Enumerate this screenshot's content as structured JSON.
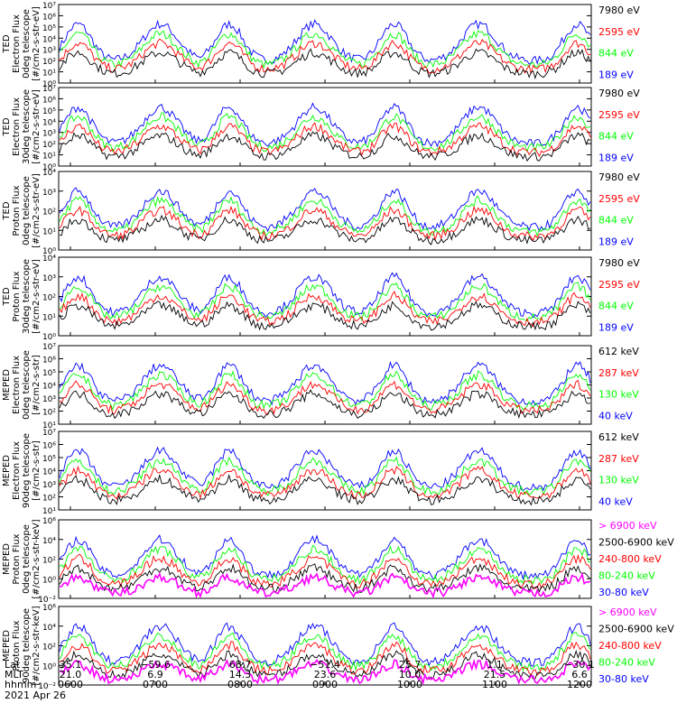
{
  "colors": {
    "blue": "#0000ff",
    "red": "#ff0000",
    "green": "#00ff00",
    "black": "#000000",
    "magenta": "#ff00ff"
  },
  "chart_data": [
    {
      "type": "line",
      "instrument": "TED",
      "ylabel": [
        "TED",
        "Electron Flux",
        "0deg telescope",
        "[#/cm2-s-str-eV]"
      ],
      "yscale": "log",
      "ylim_exp": [
        0,
        7
      ],
      "yticks": [
        "10⁰",
        "10¹",
        "10²",
        "10³",
        "10⁴",
        "10⁵",
        "10⁶",
        "10⁷"
      ],
      "legend": [
        {
          "label": "7980 eV",
          "color": "black"
        },
        {
          "label": "2595 eV",
          "color": "red"
        },
        {
          "label": "844 eV",
          "color": "green"
        },
        {
          "label": "189 eV",
          "color": "blue"
        }
      ]
    },
    {
      "type": "line",
      "instrument": "TED",
      "ylabel": [
        "TED",
        "Electron Flux",
        "30deg telescope",
        "[#/cm2-s-str-eV]"
      ],
      "yscale": "log",
      "ylim_exp": [
        0,
        7
      ],
      "yticks": [
        "10⁰",
        "10¹",
        "10²",
        "10³",
        "10⁴",
        "10⁵",
        "10⁶",
        "10⁷"
      ],
      "legend": [
        {
          "label": "7980 eV",
          "color": "black"
        },
        {
          "label": "2595 eV",
          "color": "red"
        },
        {
          "label": "844 eV",
          "color": "green"
        },
        {
          "label": "189 eV",
          "color": "blue"
        }
      ]
    },
    {
      "type": "line",
      "instrument": "TED",
      "ylabel": [
        "TED",
        "Proton Flux",
        "0deg telescope",
        "[#/cm2-s-str-eV]"
      ],
      "yscale": "log",
      "ylim_exp": [
        0,
        5
      ],
      "yticks": [
        "10⁰",
        "10¹",
        "10²",
        "10³",
        "10⁴"
      ],
      "legend": [
        {
          "label": "7980 eV",
          "color": "black"
        },
        {
          "label": "2595 eV",
          "color": "red"
        },
        {
          "label": "844 eV",
          "color": "green"
        },
        {
          "label": "189 eV",
          "color": "blue"
        }
      ]
    },
    {
      "type": "line",
      "instrument": "TED",
      "ylabel": [
        "TED",
        "Proton Flux",
        "30deg telescope",
        "[#/cm2-s-str-eV]"
      ],
      "yscale": "log",
      "ylim_exp": [
        0,
        5
      ],
      "yticks": [
        "10⁰",
        "10¹",
        "10²",
        "10³",
        "10⁴"
      ],
      "legend": [
        {
          "label": "7980 eV",
          "color": "black"
        },
        {
          "label": "2595 eV",
          "color": "red"
        },
        {
          "label": "844 eV",
          "color": "green"
        },
        {
          "label": "189 eV",
          "color": "blue"
        }
      ]
    },
    {
      "type": "line",
      "instrument": "MEPED",
      "ylabel": [
        "MEPED",
        "Electron Flux",
        "0deg telescope",
        "[#/cm2-s-str]"
      ],
      "yscale": "log",
      "ylim_exp": [
        1,
        7
      ],
      "yticks": [
        "10¹",
        "10²",
        "10³",
        "10⁴",
        "10⁵",
        "10⁶",
        "10⁷"
      ],
      "legend": [
        {
          "label": "612 keV",
          "color": "black"
        },
        {
          "label": "287 keV",
          "color": "red"
        },
        {
          "label": "130 keV",
          "color": "green"
        },
        {
          "label": "40 keV",
          "color": "blue"
        }
      ]
    },
    {
      "type": "line",
      "instrument": "MEPED",
      "ylabel": [
        "MEPED",
        "Electron Flux",
        "90deg telescope",
        "[#/cm2-s-str]"
      ],
      "yscale": "log",
      "ylim_exp": [
        1,
        7
      ],
      "yticks": [
        "10¹",
        "10²",
        "10³",
        "10⁴",
        "10⁵",
        "10⁶",
        "10⁷"
      ],
      "legend": [
        {
          "label": "612 keV",
          "color": "black"
        },
        {
          "label": "287 keV",
          "color": "red"
        },
        {
          "label": "130 keV",
          "color": "green"
        },
        {
          "label": "40 keV",
          "color": "blue"
        }
      ]
    },
    {
      "type": "line",
      "instrument": "MEPED",
      "ylabel": [
        "MEPED",
        "Proton Flux",
        "0deg telescope",
        "[#/cm2-s-str-keV]"
      ],
      "yscale": "log",
      "ylim_exp": [
        -2,
        6
      ],
      "yticks": [
        "10⁻²",
        "10⁰",
        "10²",
        "10⁴",
        "10⁶"
      ],
      "legend": [
        {
          "label": "> 6900 keV",
          "color": "magenta"
        },
        {
          "label": "2500-6900 keV",
          "color": "black"
        },
        {
          "label": "240-800 keV",
          "color": "red"
        },
        {
          "label": "80-240 keV",
          "color": "green"
        },
        {
          "label": "30-80 keV",
          "color": "blue"
        }
      ]
    },
    {
      "type": "line",
      "instrument": "MEPED",
      "ylabel": [
        "MEPED",
        "Proton Flux",
        "90deg telescope",
        "[#/cm2-s-str-keV]"
      ],
      "yscale": "log",
      "ylim_exp": [
        -2,
        6
      ],
      "yticks": [
        "10⁻²",
        "10⁰",
        "10²",
        "10⁴",
        "10⁶"
      ],
      "legend": [
        {
          "label": "> 6900 keV",
          "color": "magenta"
        },
        {
          "label": "2500-6900 keV",
          "color": "black"
        },
        {
          "label": "240-800 keV",
          "color": "red"
        },
        {
          "label": "80-240 keV",
          "color": "green"
        },
        {
          "label": "30-80 keV",
          "color": "blue"
        }
      ]
    }
  ],
  "x_axis": {
    "row_labels": [
      "Lat",
      "MLT",
      "hhmm"
    ],
    "ticks": [
      {
        "lat": "35.1",
        "mlt": "21.0",
        "hhmm": "0600"
      },
      {
        "lat": "−59.6",
        "mlt": "6.9",
        "hhmm": "0700"
      },
      {
        "lat": "68.7",
        "mlt": "14.3",
        "hhmm": "0800"
      },
      {
        "lat": "−51.4",
        "mlt": "23.6",
        "hhmm": "0900"
      },
      {
        "lat": "25.7",
        "mlt": "10.0",
        "hhmm": "1000"
      },
      {
        "lat": "1.1",
        "mlt": "21.5",
        "hhmm": "1100"
      },
      {
        "lat": "−30.1",
        "mlt": "6.6",
        "hhmm": "1200"
      }
    ],
    "date": "2021 Apr 26"
  }
}
